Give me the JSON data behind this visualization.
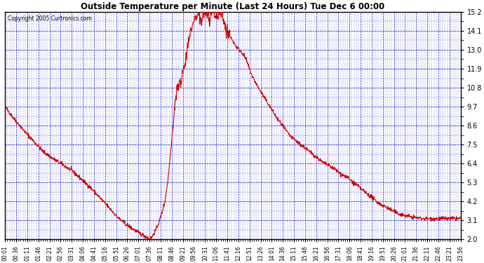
{
  "title": "Outside Temperature per Minute (Last 24 Hours) Tue Dec 6 00:00",
  "copyright": "Copyright 2005 Curtronics.com",
  "background_color": "#ffffff",
  "plot_bg_color": "#ffffff",
  "line_color": "#cc0000",
  "grid_color": "#0000cc",
  "ylim": [
    2.0,
    15.2
  ],
  "yticks": [
    2.0,
    3.1,
    4.2,
    5.3,
    6.4,
    7.5,
    8.6,
    9.7,
    10.8,
    11.9,
    13.0,
    14.1,
    15.2
  ],
  "xtick_labels": [
    "00:01",
    "00:36",
    "01:11",
    "01:46",
    "02:21",
    "02:56",
    "03:31",
    "04:06",
    "04:41",
    "05:16",
    "05:51",
    "06:26",
    "07:01",
    "07:36",
    "08:11",
    "08:46",
    "09:21",
    "09:56",
    "10:31",
    "11:06",
    "11:41",
    "12:16",
    "12:51",
    "13:26",
    "14:01",
    "14:36",
    "15:11",
    "15:46",
    "16:21",
    "16:56",
    "17:31",
    "18:06",
    "18:41",
    "19:16",
    "19:51",
    "20:26",
    "21:01",
    "21:36",
    "22:11",
    "22:46",
    "23:21",
    "23:56"
  ],
  "keypoints": [
    [
      0,
      9.7
    ],
    [
      20,
      9.2
    ],
    [
      35,
      8.85
    ],
    [
      60,
      8.3
    ],
    [
      80,
      7.9
    ],
    [
      100,
      7.5
    ],
    [
      120,
      7.1
    ],
    [
      150,
      6.7
    ],
    [
      180,
      6.35
    ],
    [
      210,
      6.0
    ],
    [
      240,
      5.5
    ],
    [
      270,
      5.0
    ],
    [
      300,
      4.4
    ],
    [
      320,
      4.0
    ],
    [
      340,
      3.6
    ],
    [
      360,
      3.2
    ],
    [
      380,
      2.9
    ],
    [
      400,
      2.65
    ],
    [
      420,
      2.4
    ],
    [
      430,
      2.3
    ],
    [
      440,
      2.2
    ],
    [
      450,
      2.1
    ],
    [
      456,
      2.0
    ],
    [
      460,
      2.05
    ],
    [
      465,
      2.15
    ],
    [
      470,
      2.35
    ],
    [
      478,
      2.6
    ],
    [
      486,
      3.0
    ],
    [
      495,
      3.5
    ],
    [
      505,
      4.2
    ],
    [
      515,
      5.5
    ],
    [
      520,
      6.5
    ],
    [
      525,
      7.5
    ],
    [
      530,
      8.5
    ],
    [
      535,
      9.5
    ],
    [
      540,
      10.4
    ],
    [
      545,
      11.0
    ],
    [
      548,
      10.8
    ],
    [
      552,
      11.3
    ],
    [
      556,
      11.0
    ],
    [
      560,
      11.6
    ],
    [
      565,
      12.0
    ],
    [
      570,
      12.5
    ],
    [
      575,
      13.0
    ],
    [
      580,
      13.5
    ],
    [
      585,
      14.0
    ],
    [
      590,
      14.3
    ],
    [
      595,
      14.6
    ],
    [
      600,
      14.8
    ],
    [
      605,
      14.9
    ],
    [
      610,
      15.0
    ],
    [
      615,
      14.8
    ],
    [
      620,
      14.5
    ],
    [
      625,
      15.0
    ],
    [
      630,
      15.1
    ],
    [
      635,
      15.2
    ],
    [
      640,
      15.0
    ],
    [
      645,
      14.7
    ],
    [
      650,
      15.1
    ],
    [
      655,
      15.2
    ],
    [
      660,
      15.1
    ],
    [
      665,
      14.9
    ],
    [
      670,
      15.0
    ],
    [
      675,
      15.2
    ],
    [
      680,
      15.1
    ],
    [
      685,
      15.0
    ],
    [
      690,
      14.8
    ],
    [
      695,
      14.5
    ],
    [
      700,
      14.1
    ],
    [
      710,
      13.8
    ],
    [
      720,
      13.5
    ],
    [
      730,
      13.2
    ],
    [
      740,
      13.0
    ],
    [
      750,
      12.8
    ],
    [
      760,
      12.5
    ],
    [
      770,
      12.0
    ],
    [
      780,
      11.5
    ],
    [
      800,
      10.8
    ],
    [
      820,
      10.2
    ],
    [
      840,
      9.6
    ],
    [
      860,
      9.0
    ],
    [
      880,
      8.5
    ],
    [
      900,
      8.0
    ],
    [
      920,
      7.7
    ],
    [
      940,
      7.4
    ],
    [
      950,
      7.3
    ],
    [
      960,
      7.1
    ],
    [
      970,
      7.0
    ],
    [
      980,
      6.8
    ],
    [
      990,
      6.7
    ],
    [
      1000,
      6.5
    ],
    [
      1010,
      6.4
    ],
    [
      1020,
      6.3
    ],
    [
      1040,
      6.1
    ],
    [
      1060,
      5.8
    ],
    [
      1080,
      5.6
    ],
    [
      1100,
      5.3
    ],
    [
      1120,
      5.0
    ],
    [
      1140,
      4.7
    ],
    [
      1160,
      4.4
    ],
    [
      1180,
      4.1
    ],
    [
      1200,
      3.9
    ],
    [
      1220,
      3.7
    ],
    [
      1240,
      3.5
    ],
    [
      1260,
      3.4
    ],
    [
      1280,
      3.3
    ],
    [
      1300,
      3.25
    ],
    [
      1320,
      3.2
    ],
    [
      1360,
      3.2
    ],
    [
      1400,
      3.2
    ],
    [
      1439,
      3.2
    ]
  ]
}
